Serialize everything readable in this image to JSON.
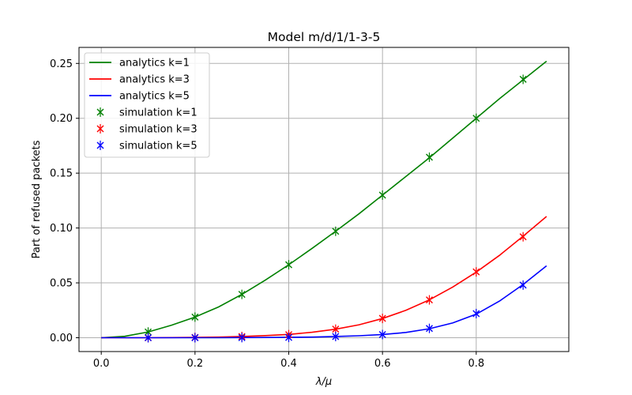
{
  "chart_data": {
    "type": "line",
    "title": "Model m/d/1/1-3-5",
    "xlabel": "λ/μ",
    "ylabel": "Part of refused packets",
    "xlim": [
      -0.0475,
      0.9975
    ],
    "ylim": [
      -0.0126,
      0.2646
    ],
    "xticks": [
      0.0,
      0.2,
      0.4,
      0.6,
      0.8
    ],
    "xtick_labels": [
      "0.0",
      "0.2",
      "0.4",
      "0.6",
      "0.8"
    ],
    "yticks": [
      0.0,
      0.05,
      0.1,
      0.15,
      0.2,
      0.25
    ],
    "ytick_labels": [
      "0.00",
      "0.05",
      "0.10",
      "0.15",
      "0.20",
      "0.25"
    ],
    "grid": true,
    "legend_position": "top-left",
    "series": [
      {
        "name": "analytics k=1",
        "kind": "line",
        "color": "#008000",
        "x": [
          0.0,
          0.05,
          0.1,
          0.15,
          0.2,
          0.25,
          0.3,
          0.35,
          0.4,
          0.45,
          0.5,
          0.55,
          0.6,
          0.65,
          0.7,
          0.75,
          0.8,
          0.85,
          0.9,
          0.95
        ],
        "y": [
          0.0,
          0.0013,
          0.0052,
          0.0114,
          0.0188,
          0.028,
          0.0395,
          0.0525,
          0.0665,
          0.0815,
          0.097,
          0.113,
          0.13,
          0.147,
          0.164,
          0.182,
          0.2,
          0.218,
          0.235,
          0.252
        ]
      },
      {
        "name": "analytics k=3",
        "kind": "line",
        "color": "#ff0000",
        "x": [
          0.0,
          0.05,
          0.1,
          0.15,
          0.2,
          0.25,
          0.3,
          0.35,
          0.4,
          0.45,
          0.5,
          0.55,
          0.6,
          0.65,
          0.7,
          0.75,
          0.8,
          0.85,
          0.9,
          0.95
        ],
        "y": [
          0.0,
          0.0,
          0.0,
          0.0001,
          0.0003,
          0.0006,
          0.0011,
          0.0019,
          0.003,
          0.005,
          0.0078,
          0.0118,
          0.0175,
          0.025,
          0.0345,
          0.0462,
          0.0598,
          0.0752,
          0.0925,
          0.1105
        ]
      },
      {
        "name": "analytics k=5",
        "kind": "line",
        "color": "#0000ff",
        "x": [
          0.0,
          0.05,
          0.1,
          0.15,
          0.2,
          0.25,
          0.3,
          0.35,
          0.4,
          0.45,
          0.5,
          0.55,
          0.6,
          0.65,
          0.7,
          0.75,
          0.8,
          0.85,
          0.9,
          0.95
        ],
        "y": [
          0.0,
          0.0,
          0.0,
          0.0,
          0.0,
          0.0,
          0.0001,
          0.0002,
          0.0004,
          0.0006,
          0.0011,
          0.0018,
          0.0029,
          0.0048,
          0.0082,
          0.0135,
          0.0215,
          0.0335,
          0.0485,
          0.0655
        ]
      },
      {
        "name": "simulation k=1",
        "kind": "errorbar",
        "color": "#008000",
        "x": [
          0.1,
          0.2,
          0.3,
          0.4,
          0.5,
          0.6,
          0.7,
          0.8,
          0.9
        ],
        "y": [
          0.0052,
          0.0188,
          0.0395,
          0.0665,
          0.097,
          0.13,
          0.1645,
          0.2,
          0.2355
        ]
      },
      {
        "name": "simulation k=3",
        "kind": "errorbar",
        "color": "#ff0000",
        "x": [
          0.1,
          0.2,
          0.3,
          0.4,
          0.5,
          0.6,
          0.7,
          0.8,
          0.9
        ],
        "y": [
          0.0,
          0.0003,
          0.0011,
          0.0028,
          0.0078,
          0.0176,
          0.0345,
          0.06,
          0.092
        ]
      },
      {
        "name": "simulation k=5",
        "kind": "errorbar",
        "color": "#0000ff",
        "x": [
          0.1,
          0.2,
          0.3,
          0.4,
          0.5,
          0.6,
          0.7,
          0.8,
          0.9
        ],
        "y": [
          0.0,
          0.0,
          0.0001,
          0.0003,
          0.0011,
          0.0029,
          0.0085,
          0.022,
          0.048
        ]
      }
    ]
  }
}
